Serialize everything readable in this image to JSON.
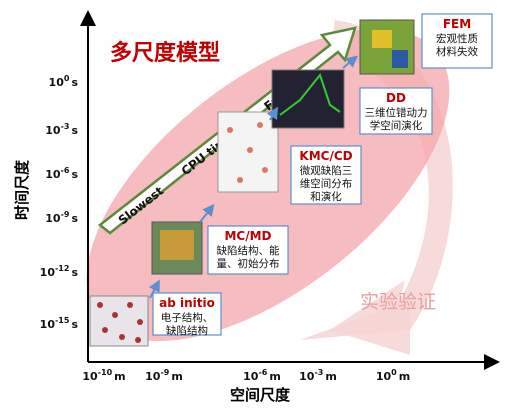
{
  "title": "多尺度模型",
  "y_axis": {
    "label": "时间尺度",
    "ticks": [
      {
        "base": "10",
        "exp": "0",
        "unit": "s"
      },
      {
        "base": "10",
        "exp": "-3",
        "unit": "s"
      },
      {
        "base": "10",
        "exp": "-6",
        "unit": "s"
      },
      {
        "base": "10",
        "exp": "-9",
        "unit": "s"
      },
      {
        "base": "10",
        "exp": "-12",
        "unit": "s"
      },
      {
        "base": "10",
        "exp": "-15",
        "unit": "s"
      }
    ]
  },
  "x_axis": {
    "label": "空间尺度",
    "ticks": [
      {
        "base": "10",
        "exp": "-10",
        "unit": "m"
      },
      {
        "base": "10",
        "exp": "-9",
        "unit": "m"
      },
      {
        "base": "10",
        "exp": "-6",
        "unit": "m"
      },
      {
        "base": "10",
        "exp": "-3",
        "unit": "m"
      },
      {
        "base": "10",
        "exp": "0",
        "unit": "m"
      }
    ]
  },
  "cpu_arrow": {
    "start": "Slowest",
    "middle": "CPU time",
    "end": "Fastest"
  },
  "methods": [
    {
      "name": "ab initio",
      "lines": [
        "电子结构、",
        "缺陷结构"
      ]
    },
    {
      "name": "MC/MD",
      "lines": [
        "缺陷结构、能",
        "量、初始分布"
      ]
    },
    {
      "name": "KMC/CD",
      "lines": [
        "微观缺陷三",
        "维空间分布",
        "和演化"
      ]
    },
    {
      "name": "DD",
      "lines": [
        "三维位错动力",
        "学空间演化"
      ]
    },
    {
      "name": "FEM",
      "lines": [
        "宏观性质",
        "材料失效"
      ]
    }
  ],
  "validation": "实验验证"
}
